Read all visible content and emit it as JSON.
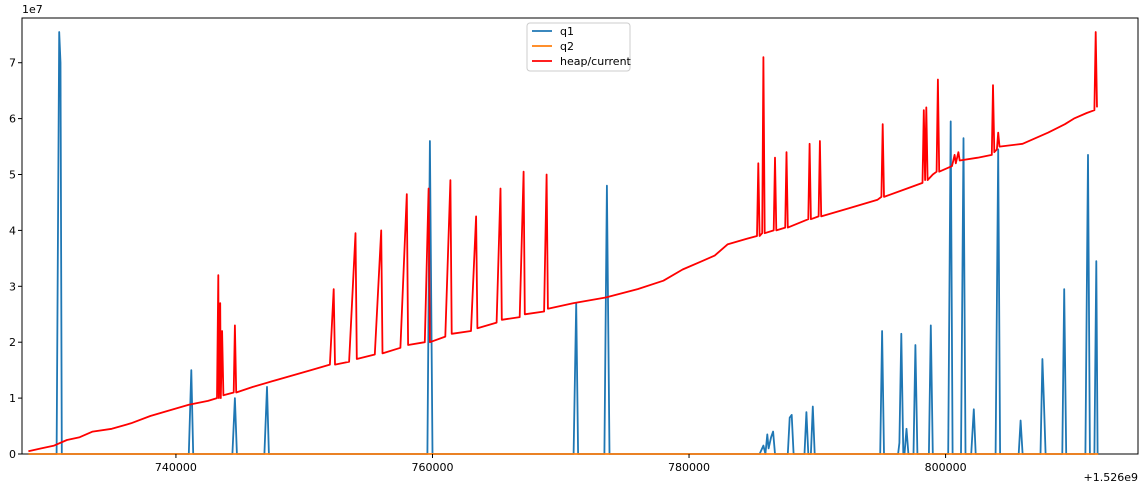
{
  "chart_data": {
    "type": "line",
    "title": "",
    "xlabel": "",
    "ylabel": "",
    "x_offset_label": "+1.526e9",
    "y_scale_label": "1e7",
    "xlim": [
      728000,
      815000
    ],
    "ylim": [
      0,
      7.8
    ],
    "x_ticks": [
      740000,
      760000,
      780000,
      800000
    ],
    "x_tick_labels": [
      "740000",
      "760000",
      "780000",
      "800000"
    ],
    "y_ticks": [
      0,
      1,
      2,
      3,
      4,
      5,
      6,
      7
    ],
    "y_tick_labels": [
      "0",
      "1",
      "2",
      "3",
      "4",
      "5",
      "6",
      "7"
    ],
    "grid": false,
    "legend_position": "top-center",
    "series": [
      {
        "name": "q1",
        "color": "#1f77b4",
        "points": [
          [
            728500,
            0
          ],
          [
            730700,
            0
          ],
          [
            730900,
            7.55
          ],
          [
            731000,
            7.0
          ],
          [
            731100,
            0
          ],
          [
            741000,
            0
          ],
          [
            741200,
            1.5
          ],
          [
            741350,
            0
          ],
          [
            744400,
            0
          ],
          [
            744600,
            1.0
          ],
          [
            744750,
            0
          ],
          [
            746900,
            0
          ],
          [
            747100,
            1.2
          ],
          [
            747250,
            0
          ],
          [
            759600,
            0
          ],
          [
            759800,
            5.6
          ],
          [
            760000,
            0
          ],
          [
            771000,
            0
          ],
          [
            771200,
            2.7
          ],
          [
            771350,
            0
          ],
          [
            773400,
            0
          ],
          [
            773600,
            4.8
          ],
          [
            773800,
            0
          ],
          [
            785500,
            0
          ],
          [
            785800,
            0.15
          ],
          [
            785950,
            0
          ],
          [
            786100,
            0.35
          ],
          [
            786200,
            0.1
          ],
          [
            786400,
            0.3
          ],
          [
            786550,
            0.4
          ],
          [
            786700,
            0
          ],
          [
            787700,
            0
          ],
          [
            787850,
            0.65
          ],
          [
            788000,
            0.7
          ],
          [
            788150,
            0
          ],
          [
            789000,
            0
          ],
          [
            789150,
            0.75
          ],
          [
            789300,
            0
          ],
          [
            789500,
            0
          ],
          [
            789650,
            0.85
          ],
          [
            789800,
            0
          ],
          [
            794900,
            0
          ],
          [
            795050,
            2.2
          ],
          [
            795200,
            0
          ],
          [
            796300,
            0
          ],
          [
            796400,
            0.2
          ],
          [
            796550,
            2.15
          ],
          [
            796700,
            0
          ],
          [
            796800,
            0
          ],
          [
            796950,
            0.45
          ],
          [
            797100,
            0
          ],
          [
            797500,
            0
          ],
          [
            797650,
            1.95
          ],
          [
            797800,
            0
          ],
          [
            798700,
            0
          ],
          [
            798850,
            2.3
          ],
          [
            799000,
            0
          ],
          [
            800200,
            0
          ],
          [
            800400,
            5.95
          ],
          [
            800550,
            0
          ],
          [
            801200,
            0
          ],
          [
            801400,
            5.65
          ],
          [
            801550,
            0
          ],
          [
            802000,
            0
          ],
          [
            802200,
            0.8
          ],
          [
            802350,
            0
          ],
          [
            803900,
            0
          ],
          [
            804100,
            5.45
          ],
          [
            804250,
            0
          ],
          [
            805700,
            0
          ],
          [
            805850,
            0.6
          ],
          [
            806000,
            0
          ],
          [
            807400,
            0
          ],
          [
            807550,
            1.7
          ],
          [
            807650,
            1.05
          ],
          [
            807800,
            0
          ],
          [
            809100,
            0
          ],
          [
            809250,
            2.95
          ],
          [
            809400,
            0
          ],
          [
            810900,
            0
          ],
          [
            811100,
            5.35
          ],
          [
            811250,
            0
          ],
          [
            811600,
            0
          ],
          [
            811750,
            3.45
          ],
          [
            811850,
            0
          ]
        ]
      },
      {
        "name": "q2",
        "color": "#ff7f0e",
        "points": [
          [
            728500,
            0
          ],
          [
            811900,
            0
          ]
        ]
      },
      {
        "name": "heap/current",
        "color": "#ff0000",
        "points": [
          [
            728500,
            0.05
          ],
          [
            729500,
            0.1
          ],
          [
            730500,
            0.15
          ],
          [
            731500,
            0.25
          ],
          [
            732500,
            0.3
          ],
          [
            733500,
            0.4
          ],
          [
            735000,
            0.45
          ],
          [
            736500,
            0.55
          ],
          [
            738000,
            0.68
          ],
          [
            739500,
            0.78
          ],
          [
            741000,
            0.88
          ],
          [
            742500,
            0.95
          ],
          [
            743200,
            1.0
          ],
          [
            743300,
            3.2
          ],
          [
            743350,
            1.0
          ],
          [
            743450,
            2.7
          ],
          [
            743500,
            1.0
          ],
          [
            743600,
            2.2
          ],
          [
            743700,
            1.05
          ],
          [
            744500,
            1.1
          ],
          [
            744600,
            2.3
          ],
          [
            744700,
            1.1
          ],
          [
            746000,
            1.2
          ],
          [
            747500,
            1.3
          ],
          [
            749000,
            1.4
          ],
          [
            750500,
            1.5
          ],
          [
            752000,
            1.6
          ],
          [
            752300,
            2.95
          ],
          [
            752400,
            1.6
          ],
          [
            753500,
            1.65
          ],
          [
            754000,
            3.95
          ],
          [
            754100,
            1.7
          ],
          [
            755500,
            1.78
          ],
          [
            756000,
            4.0
          ],
          [
            756100,
            1.8
          ],
          [
            757500,
            1.9
          ],
          [
            758000,
            4.65
          ],
          [
            758100,
            1.95
          ],
          [
            759400,
            2.0
          ],
          [
            759700,
            4.75
          ],
          [
            759800,
            2.0
          ],
          [
            761000,
            2.1
          ],
          [
            761400,
            4.9
          ],
          [
            761500,
            2.15
          ],
          [
            763000,
            2.2
          ],
          [
            763400,
            4.25
          ],
          [
            763500,
            2.25
          ],
          [
            765000,
            2.35
          ],
          [
            765300,
            4.75
          ],
          [
            765400,
            2.4
          ],
          [
            766800,
            2.45
          ],
          [
            767100,
            5.05
          ],
          [
            767200,
            2.5
          ],
          [
            768700,
            2.55
          ],
          [
            768900,
            5.0
          ],
          [
            769000,
            2.6
          ],
          [
            771000,
            2.7
          ],
          [
            773500,
            2.8
          ],
          [
            776000,
            2.95
          ],
          [
            778000,
            3.1
          ],
          [
            779500,
            3.3
          ],
          [
            781000,
            3.45
          ],
          [
            782000,
            3.55
          ],
          [
            783000,
            3.75
          ],
          [
            784500,
            3.85
          ],
          [
            785300,
            3.9
          ],
          [
            785400,
            5.2
          ],
          [
            785500,
            3.9
          ],
          [
            785700,
            3.95
          ],
          [
            785800,
            7.1
          ],
          [
            785900,
            3.95
          ],
          [
            786600,
            4.0
          ],
          [
            786700,
            5.3
          ],
          [
            786800,
            4.0
          ],
          [
            787500,
            4.05
          ],
          [
            787600,
            5.4
          ],
          [
            787700,
            4.05
          ],
          [
            789300,
            4.2
          ],
          [
            789400,
            5.55
          ],
          [
            789500,
            4.2
          ],
          [
            790100,
            4.25
          ],
          [
            790200,
            5.6
          ],
          [
            790300,
            4.25
          ],
          [
            792500,
            4.4
          ],
          [
            794700,
            4.55
          ],
          [
            795000,
            4.6
          ],
          [
            795100,
            5.9
          ],
          [
            795200,
            4.6
          ],
          [
            797000,
            4.75
          ],
          [
            798200,
            4.85
          ],
          [
            798300,
            6.15
          ],
          [
            798400,
            4.9
          ],
          [
            798500,
            6.2
          ],
          [
            798600,
            4.9
          ],
          [
            799000,
            5.0
          ],
          [
            799300,
            5.05
          ],
          [
            799400,
            6.7
          ],
          [
            799500,
            5.05
          ],
          [
            800500,
            5.15
          ],
          [
            800700,
            5.35
          ],
          [
            800800,
            5.2
          ],
          [
            801000,
            5.4
          ],
          [
            801100,
            5.25
          ],
          [
            802500,
            5.3
          ],
          [
            803600,
            5.35
          ],
          [
            803700,
            6.6
          ],
          [
            803800,
            5.4
          ],
          [
            804000,
            5.45
          ],
          [
            804100,
            5.75
          ],
          [
            804200,
            5.5
          ],
          [
            806000,
            5.55
          ],
          [
            808000,
            5.75
          ],
          [
            809300,
            5.9
          ],
          [
            810000,
            6.0
          ],
          [
            811000,
            6.1
          ],
          [
            811600,
            6.15
          ],
          [
            811700,
            7.55
          ],
          [
            811800,
            6.2
          ]
        ]
      }
    ]
  }
}
